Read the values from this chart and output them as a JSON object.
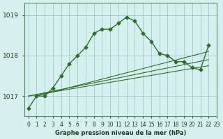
{
  "title": "Graphe pression niveau de la mer (hPa)",
  "background_color": "#d6f0f0",
  "grid_color": "#a0c8c8",
  "line_color": "#2d6e2d",
  "x_labels": [
    "0",
    "1",
    "2",
    "3",
    "4",
    "5",
    "6",
    "7",
    "8",
    "9",
    "10",
    "11",
    "12",
    "13",
    "14",
    "15",
    "16",
    "17",
    "18",
    "19",
    "20",
    "21",
    "22",
    "23"
  ],
  "ylim": [
    1016.5,
    1019.3
  ],
  "yticks": [
    1017,
    1018,
    1019
  ],
  "main_series": [
    1016.7,
    1017.0,
    1017.0,
    1017.2,
    1017.5,
    1017.8,
    1018.0,
    1018.2,
    1018.55,
    1018.65,
    1018.65,
    1018.8,
    1018.95,
    1018.85,
    1018.55,
    1018.35,
    1018.05,
    1018.0,
    1017.85,
    1017.85,
    1017.7,
    1017.65,
    1018.25
  ],
  "straight_lines": [
    {
      "x": [
        0,
        22
      ],
      "y": [
        1017.0,
        1017.75
      ]
    },
    {
      "x": [
        0,
        22
      ],
      "y": [
        1017.0,
        1017.9
      ]
    },
    {
      "x": [
        1,
        22
      ],
      "y": [
        1017.0,
        1018.1
      ]
    }
  ]
}
